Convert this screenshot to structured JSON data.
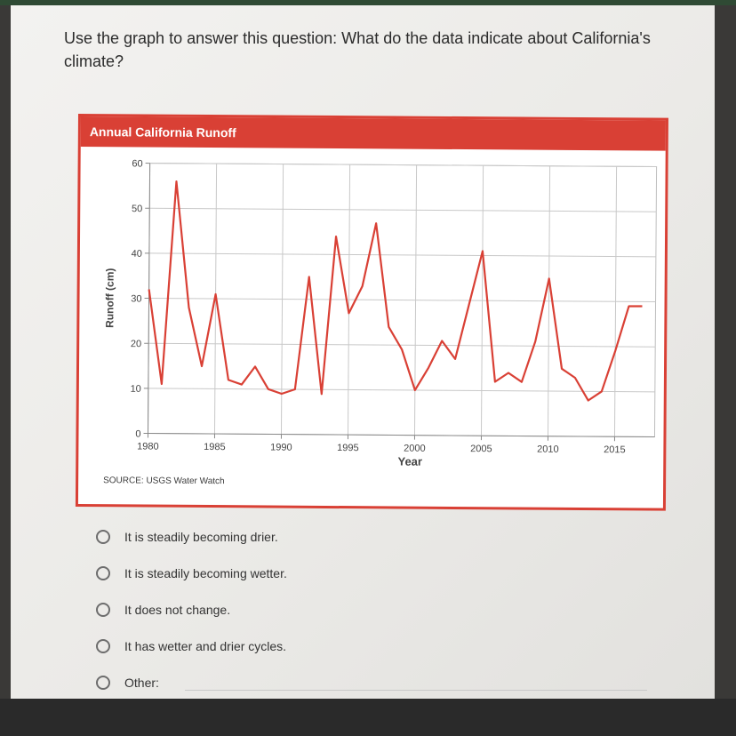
{
  "question": "Use the graph to answer this question: What do the data indicate about California's climate?",
  "chart_data": {
    "type": "line",
    "title": "Annual California Runoff",
    "xlabel": "Year",
    "ylabel": "Runoff (cm)",
    "xlim": [
      1980,
      2018
    ],
    "ylim": [
      0,
      60
    ],
    "x_ticks": [
      1980,
      1985,
      1990,
      1995,
      2000,
      2005,
      2010,
      2015
    ],
    "y_ticks": [
      0,
      10,
      20,
      30,
      40,
      50,
      60
    ],
    "grid": true,
    "series": [
      {
        "color": "#d94035",
        "x": [
          1980,
          1981,
          1982,
          1983,
          1984,
          1985,
          1986,
          1987,
          1988,
          1989,
          1990,
          1991,
          1992,
          1993,
          1994,
          1995,
          1996,
          1997,
          1998,
          1999,
          2000,
          2001,
          2002,
          2003,
          2004,
          2005,
          2006,
          2007,
          2008,
          2009,
          2010,
          2011,
          2012,
          2013,
          2014,
          2015,
          2016,
          2017
        ],
        "y": [
          32,
          11,
          56,
          28,
          15,
          31,
          12,
          11,
          15,
          10,
          9,
          10,
          35,
          9,
          44,
          27,
          33,
          47,
          24,
          19,
          10,
          15,
          21,
          17,
          29,
          41,
          12,
          14,
          12,
          21,
          35,
          15,
          13,
          8,
          10,
          19,
          29,
          29
        ]
      }
    ],
    "source": "SOURCE: USGS Water Watch"
  },
  "options": [
    {
      "label": "It is steadily becoming drier."
    },
    {
      "label": "It is steadily becoming wetter."
    },
    {
      "label": "It does not change."
    },
    {
      "label": "It has wetter and drier cycles."
    },
    {
      "label": "Other:"
    }
  ]
}
